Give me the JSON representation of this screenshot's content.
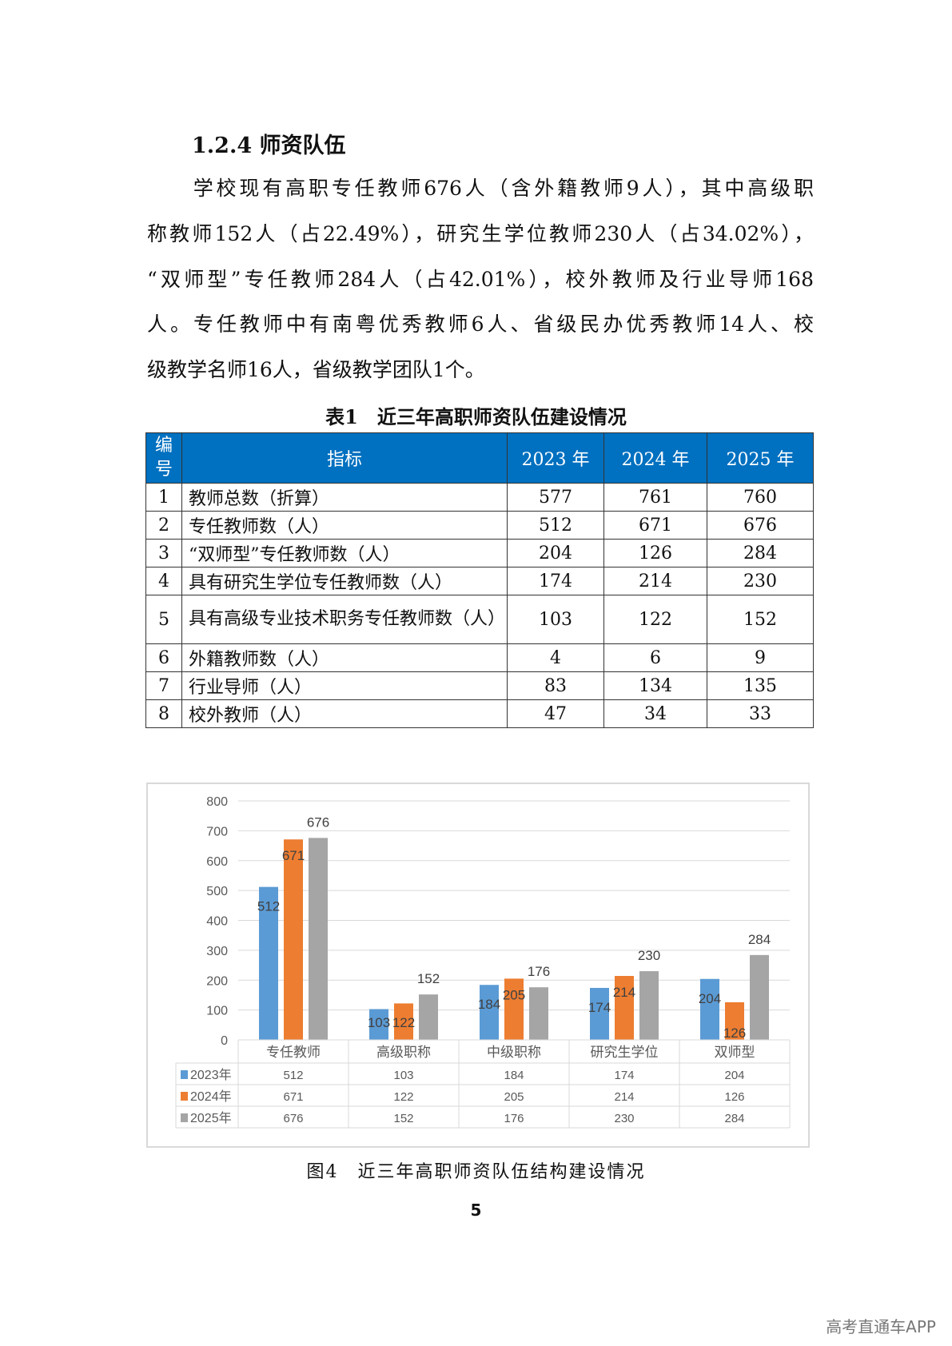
{
  "heading": "1.2.4 师资队伍",
  "paragraph": [
    "　　学校现有高职专任教师676人（含外籍教师9人），其中高级职",
    "称教师152人（占22.49%），研究生学位教师230人（占34.02%），",
    "“双师型”专任教师284人（占42.01%），校外教师及行业导师168",
    "人。专任教师中有南粤优秀教师6人、省级民办优秀教师14人、校",
    "级教学名师16人，省级教学团队1个。"
  ],
  "table": {
    "title": "表1　近三年高职师资队伍建设情况",
    "headers": [
      "编号",
      "指标",
      "2023 年",
      "2024 年",
      "2025 年"
    ],
    "rows": [
      [
        "1",
        "教师总数（折算）",
        "577",
        "761",
        "760"
      ],
      [
        "2",
        "专任教师数（人）",
        "512",
        "671",
        "676"
      ],
      [
        "3",
        "“双师型”专任教师数（人）",
        "204",
        "126",
        "284"
      ],
      [
        "4",
        "具有研究生学位专任教师数（人）",
        "174",
        "214",
        "230"
      ],
      [
        "5",
        "具有高级专业技术职务专任教师数（人）",
        "103",
        "122",
        "152"
      ],
      [
        "6",
        "外籍教师数（人）",
        "4",
        "6",
        "9"
      ],
      [
        "7",
        "行业导师（人）",
        "83",
        "134",
        "135"
      ],
      [
        "8",
        "校外教师（人）",
        "47",
        "34",
        "33"
      ]
    ]
  },
  "chart_data": {
    "type": "bar",
    "categories": [
      "专任教师",
      "高级职称",
      "中级职称",
      "研究生学位",
      "双师型"
    ],
    "series": [
      {
        "name": "2023年",
        "values": [
          512,
          103,
          184,
          174,
          204
        ],
        "color": "#5b9bd5"
      },
      {
        "name": "2024年",
        "values": [
          671,
          122,
          205,
          214,
          126
        ],
        "color": "#ed7d31"
      },
      {
        "name": "2025年",
        "values": [
          676,
          152,
          176,
          230,
          284
        ],
        "color": "#a5a5a5"
      }
    ],
    "ylim": [
      0,
      800
    ],
    "yticks": [
      0,
      100,
      200,
      300,
      400,
      500,
      600,
      700,
      800
    ],
    "grid": true,
    "legend": "data-table"
  },
  "caption": "图4　近三年高职师资队伍结构建设情况",
  "page_number": "5",
  "watermark": "高考直通车APP"
}
